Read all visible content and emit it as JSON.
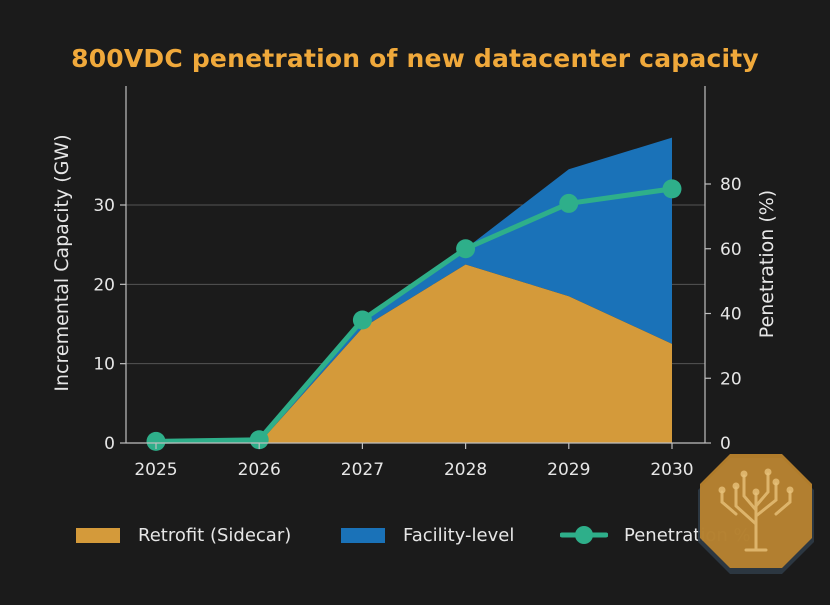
{
  "chart_data": {
    "type": "area",
    "title": "800VDC penetration of new datacenter capacity",
    "x": [
      "2025",
      "2026",
      "2027",
      "2028",
      "2029",
      "2030"
    ],
    "ylabel_left": "Incremental Capacity (GW)",
    "ylabel_right": "Penetration (%)",
    "ylim_left": [
      0,
      38
    ],
    "ylim_right": [
      0,
      100
    ],
    "yticks_left": [
      "0",
      "10",
      "20",
      "30"
    ],
    "yticks_right": [
      "0",
      "20",
      "40",
      "60",
      "80"
    ],
    "grid": "horizontal",
    "legend_position": "bottom",
    "series": [
      {
        "name": "Retrofit (Sidecar)",
        "kind": "stacked-area",
        "axis": "left",
        "color": "#d49a3a",
        "values": [
          0,
          0,
          14.5,
          22.5,
          18.5,
          12.5
        ]
      },
      {
        "name": "Facility-level",
        "kind": "stacked-area",
        "axis": "left",
        "color": "#1a72b8",
        "values": [
          0,
          0,
          1.0,
          2.0,
          16.0,
          26.0
        ]
      },
      {
        "name": "Penetration %",
        "kind": "line",
        "axis": "right",
        "color": "#2eaf8a",
        "values": [
          0.5,
          1.0,
          38,
          60,
          74,
          78.5
        ]
      }
    ]
  },
  "theme": {
    "background": "#1b1b1b",
    "title_color": "#f0a93b",
    "text_color": "#e6e6e6",
    "axis_color": "#bfbfbf",
    "grid_color": "#555555"
  },
  "badge": {
    "icon": "tree-circuit-icon",
    "color": "#c58a2e"
  }
}
